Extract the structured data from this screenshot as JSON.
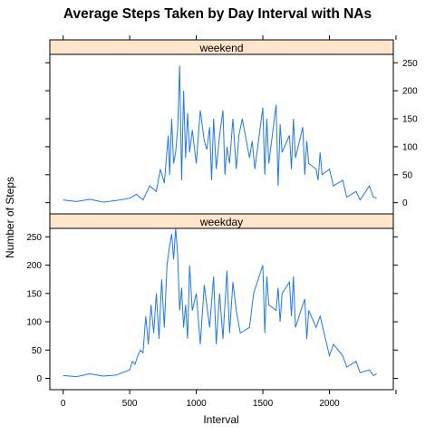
{
  "chart_data": {
    "type": "line",
    "title": "Average Steps Taken by Day Interval with NAs",
    "xlabel": "Interval",
    "ylabel": "Number of Steps",
    "xlim": [
      -100,
      2480
    ],
    "ylim": [
      -20,
      265
    ],
    "x_ticks": [
      0,
      500,
      1000,
      1500,
      2000
    ],
    "y_ticks": [
      0,
      50,
      100,
      150,
      200,
      250
    ],
    "line_color": "#1f77f4",
    "strip_color": "#ffe5cc",
    "panels": [
      {
        "name": "weekend",
        "y_axis_side": "right",
        "series": {
          "x": [
            0,
            100,
            200,
            300,
            400,
            500,
            550,
            600,
            650,
            700,
            730,
            760,
            790,
            800,
            815,
            830,
            845,
            860,
            875,
            890,
            905,
            920,
            935,
            950,
            970,
            1000,
            1030,
            1060,
            1080,
            1100,
            1115,
            1130,
            1150,
            1175,
            1200,
            1215,
            1230,
            1250,
            1275,
            1300,
            1320,
            1345,
            1400,
            1420,
            1440,
            1500,
            1515,
            1530,
            1545,
            1600,
            1615,
            1630,
            1645,
            1700,
            1715,
            1730,
            1745,
            1800,
            1815,
            1830,
            1845,
            1900,
            1915,
            1930,
            1945,
            2000,
            2030,
            2100,
            2130,
            2200,
            2230,
            2300,
            2330,
            2355
          ],
          "y": [
            5,
            2,
            6,
            1,
            4,
            8,
            15,
            5,
            30,
            20,
            60,
            35,
            120,
            50,
            150,
            70,
            90,
            130,
            245,
            40,
            200,
            80,
            160,
            90,
            130,
            70,
            165,
            110,
            95,
            135,
            40,
            150,
            60,
            120,
            165,
            50,
            100,
            70,
            150,
            60,
            120,
            150,
            80,
            110,
            60,
            170,
            50,
            150,
            70,
            175,
            30,
            140,
            90,
            120,
            60,
            150,
            80,
            135,
            50,
            110,
            70,
            60,
            40,
            90,
            50,
            60,
            30,
            40,
            10,
            20,
            5,
            30,
            10,
            8
          ]
        }
      },
      {
        "name": "weekday",
        "y_axis_side": "left",
        "series": {
          "x": [
            0,
            100,
            200,
            300,
            400,
            500,
            520,
            540,
            560,
            580,
            600,
            620,
            640,
            660,
            680,
            700,
            720,
            740,
            760,
            780,
            800,
            815,
            830,
            845,
            860,
            875,
            890,
            905,
            920,
            935,
            950,
            970,
            1000,
            1030,
            1060,
            1100,
            1130,
            1150,
            1175,
            1200,
            1230,
            1250,
            1275,
            1300,
            1330,
            1400,
            1430,
            1500,
            1515,
            1530,
            1545,
            1600,
            1615,
            1630,
            1645,
            1700,
            1715,
            1730,
            1745,
            1800,
            1815,
            1830,
            1845,
            1900,
            1930,
            2000,
            2030,
            2100,
            2130,
            2200,
            2230,
            2300,
            2330,
            2355
          ],
          "y": [
            5,
            3,
            8,
            4,
            6,
            15,
            30,
            25,
            40,
            50,
            45,
            110,
            60,
            130,
            80,
            150,
            70,
            175,
            90,
            200,
            235,
            255,
            210,
            265,
            220,
            120,
            160,
            90,
            130,
            70,
            200,
            120,
            150,
            60,
            165,
            90,
            180,
            60,
            150,
            70,
            190,
            80,
            170,
            120,
            80,
            90,
            150,
            200,
            80,
            180,
            130,
            120,
            160,
            100,
            150,
            170,
            110,
            180,
            90,
            130,
            140,
            70,
            120,
            90,
            110,
            40,
            60,
            40,
            20,
            30,
            10,
            15,
            5,
            8
          ]
        }
      }
    ]
  }
}
